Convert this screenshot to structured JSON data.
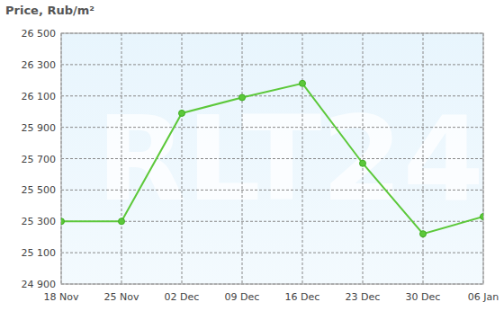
{
  "chart_data": {
    "type": "line",
    "title": "Price, Rub/m²",
    "annotations": [
      "RLT24"
    ],
    "categories": [
      "18 Nov",
      "25 Nov",
      "02 Dec",
      "09 Dec",
      "16 Dec",
      "23 Dec",
      "30 Dec",
      "06 Jan"
    ],
    "values": [
      25300,
      25300,
      25990,
      26090,
      26180,
      25670,
      25220,
      25330
    ],
    "color": "#5cc83a",
    "marker": "circle",
    "ylim": [
      24900,
      26500
    ],
    "yticks": [
      {
        "value": 24900,
        "label": "24 900"
      },
      {
        "value": 25100,
        "label": "25 100"
      },
      {
        "value": 25300,
        "label": "25 300"
      },
      {
        "value": 25500,
        "label": "25 500"
      },
      {
        "value": 25700,
        "label": "25 700"
      },
      {
        "value": 25900,
        "label": "25 900"
      },
      {
        "value": 26100,
        "label": "26 100"
      },
      {
        "value": 26300,
        "label": "26 300"
      },
      {
        "value": 26500,
        "label": "26 500"
      }
    ],
    "grid": true
  }
}
